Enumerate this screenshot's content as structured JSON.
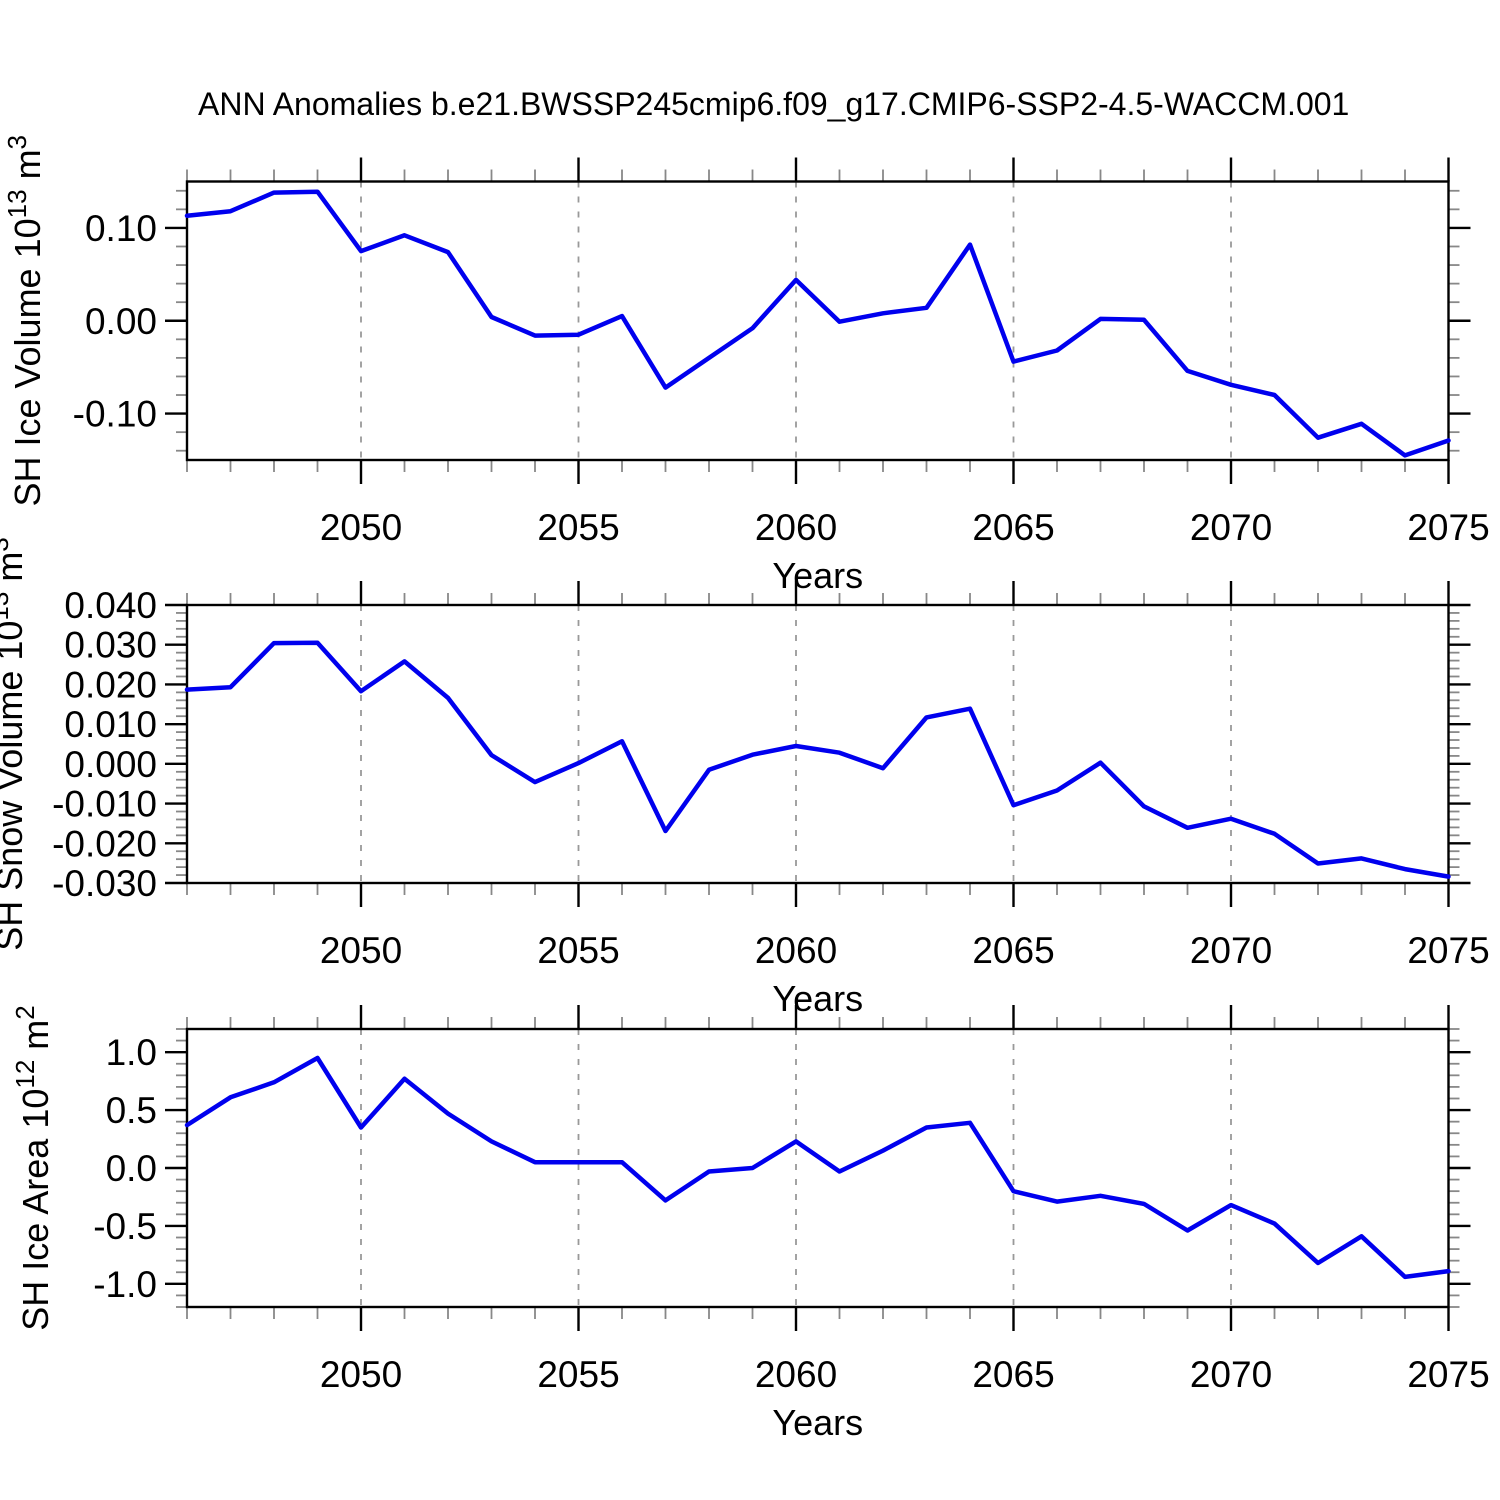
{
  "title": "ANN Anomalies b.e21.BWSSP245cmip6.f09_g17.CMIP6-SSP2-4.5-WACCM.001",
  "colors": {
    "line": "#0000ee",
    "grid": "#999999",
    "axis": "#000000",
    "minor_tick": "#888888",
    "background": "#ffffff",
    "text": "#000000"
  },
  "chart_data": [
    {
      "type": "line",
      "panel": "top",
      "xlabel": "Years",
      "ylabel_parts": [
        {
          "t": "SH Ice Volume 10"
        },
        {
          "t": "13",
          "sup": true
        },
        {
          "t": " m"
        },
        {
          "t": "3",
          "sup": true
        }
      ],
      "xlim": [
        2046,
        2075
      ],
      "ylim": [
        -0.15,
        0.15
      ],
      "x_major_ticks": [
        2050,
        2055,
        2060,
        2065,
        2070,
        2075
      ],
      "x_tick_labels": [
        "2050",
        "2055",
        "2060",
        "2065",
        "2070",
        "2075"
      ],
      "x_minor_step": 1,
      "grid_x": [
        2050,
        2055,
        2060,
        2065,
        2070
      ],
      "y_major_ticks": [
        0.1,
        0.0,
        -0.1
      ],
      "y_tick_labels": [
        "0.10",
        "0.00",
        "-0.10"
      ],
      "y_minor_step": 0.02,
      "years": [
        2046,
        2047,
        2048,
        2049,
        2050,
        2051,
        2052,
        2053,
        2054,
        2055,
        2056,
        2057,
        2058,
        2059,
        2060,
        2061,
        2062,
        2063,
        2064,
        2065,
        2066,
        2067,
        2068,
        2069,
        2070,
        2071,
        2072,
        2073,
        2074,
        2075
      ],
      "values": [
        0.113,
        0.118,
        0.138,
        0.139,
        0.075,
        0.092,
        0.074,
        0.004,
        -0.016,
        -0.015,
        0.005,
        -0.072,
        -0.04,
        -0.008,
        0.044,
        -0.001,
        0.008,
        0.014,
        0.082,
        -0.044,
        -0.032,
        0.002,
        0.001,
        -0.054,
        -0.069,
        -0.08,
        -0.126,
        -0.111,
        -0.145,
        -0.129
      ]
    },
    {
      "type": "line",
      "panel": "middle",
      "xlabel": "Years",
      "ylabel_parts": [
        {
          "t": "SH Snow Volume 10"
        },
        {
          "t": "13",
          "sup": true
        },
        {
          "t": " m"
        },
        {
          "t": "3",
          "sup": true
        }
      ],
      "xlim": [
        2046,
        2075
      ],
      "ylim": [
        -0.03,
        0.04
      ],
      "x_major_ticks": [
        2050,
        2055,
        2060,
        2065,
        2070,
        2075
      ],
      "x_tick_labels": [
        "2050",
        "2055",
        "2060",
        "2065",
        "2070",
        "2075"
      ],
      "x_minor_step": 1,
      "grid_x": [
        2050,
        2055,
        2060,
        2065,
        2070
      ],
      "y_major_ticks": [
        0.04,
        0.03,
        0.02,
        0.01,
        0.0,
        -0.01,
        -0.02,
        -0.03
      ],
      "y_tick_labels": [
        "0.040",
        "0.030",
        "0.020",
        "0.010",
        "0.000",
        "-0.010",
        "-0.020",
        "-0.030"
      ],
      "y_minor_step": 0.002,
      "years": [
        2046,
        2047,
        2048,
        2049,
        2050,
        2051,
        2052,
        2053,
        2054,
        2055,
        2056,
        2057,
        2058,
        2059,
        2060,
        2061,
        2062,
        2063,
        2064,
        2065,
        2066,
        2067,
        2068,
        2069,
        2070,
        2071,
        2072,
        2073,
        2074,
        2075
      ],
      "values": [
        0.0187,
        0.0193,
        0.0304,
        0.0305,
        0.0183,
        0.0258,
        0.0166,
        0.0022,
        -0.0046,
        0.0002,
        0.0057,
        -0.0169,
        -0.0015,
        0.0023,
        0.0045,
        0.0028,
        -0.0011,
        0.0117,
        0.0139,
        -0.0104,
        -0.0067,
        0.0003,
        -0.0107,
        -0.0161,
        -0.0138,
        -0.0176,
        -0.0251,
        -0.0238,
        -0.0265,
        -0.0284
      ]
    },
    {
      "type": "line",
      "panel": "bottom",
      "xlabel": "Years",
      "ylabel_parts": [
        {
          "t": "SH Ice Area 10"
        },
        {
          "t": "12",
          "sup": true
        },
        {
          "t": " m"
        },
        {
          "t": "2",
          "sup": true
        }
      ],
      "xlim": [
        2046,
        2075
      ],
      "ylim": [
        -1.2,
        1.2
      ],
      "x_major_ticks": [
        2050,
        2055,
        2060,
        2065,
        2070,
        2075
      ],
      "x_tick_labels": [
        "2050",
        "2055",
        "2060",
        "2065",
        "2070",
        "2075"
      ],
      "x_minor_step": 1,
      "grid_x": [
        2050,
        2055,
        2060,
        2065,
        2070
      ],
      "y_major_ticks": [
        1.0,
        0.5,
        0.0,
        -0.5,
        -1.0
      ],
      "y_tick_labels": [
        "1.0",
        "0.5",
        "0.0",
        "-0.5",
        "-1.0"
      ],
      "y_minor_step": 0.1,
      "years": [
        2046,
        2047,
        2048,
        2049,
        2050,
        2051,
        2052,
        2053,
        2054,
        2055,
        2056,
        2057,
        2058,
        2059,
        2060,
        2061,
        2062,
        2063,
        2064,
        2065,
        2066,
        2067,
        2068,
        2069,
        2070,
        2071,
        2072,
        2073,
        2074,
        2075
      ],
      "values": [
        0.37,
        0.61,
        0.74,
        0.95,
        0.35,
        0.77,
        0.47,
        0.23,
        0.05,
        0.05,
        0.05,
        -0.28,
        -0.03,
        0.0,
        0.23,
        -0.03,
        0.15,
        0.35,
        0.39,
        -0.2,
        -0.29,
        -0.24,
        -0.31,
        -0.54,
        -0.32,
        -0.48,
        -0.82,
        -0.59,
        -0.94,
        -0.89
      ]
    }
  ]
}
